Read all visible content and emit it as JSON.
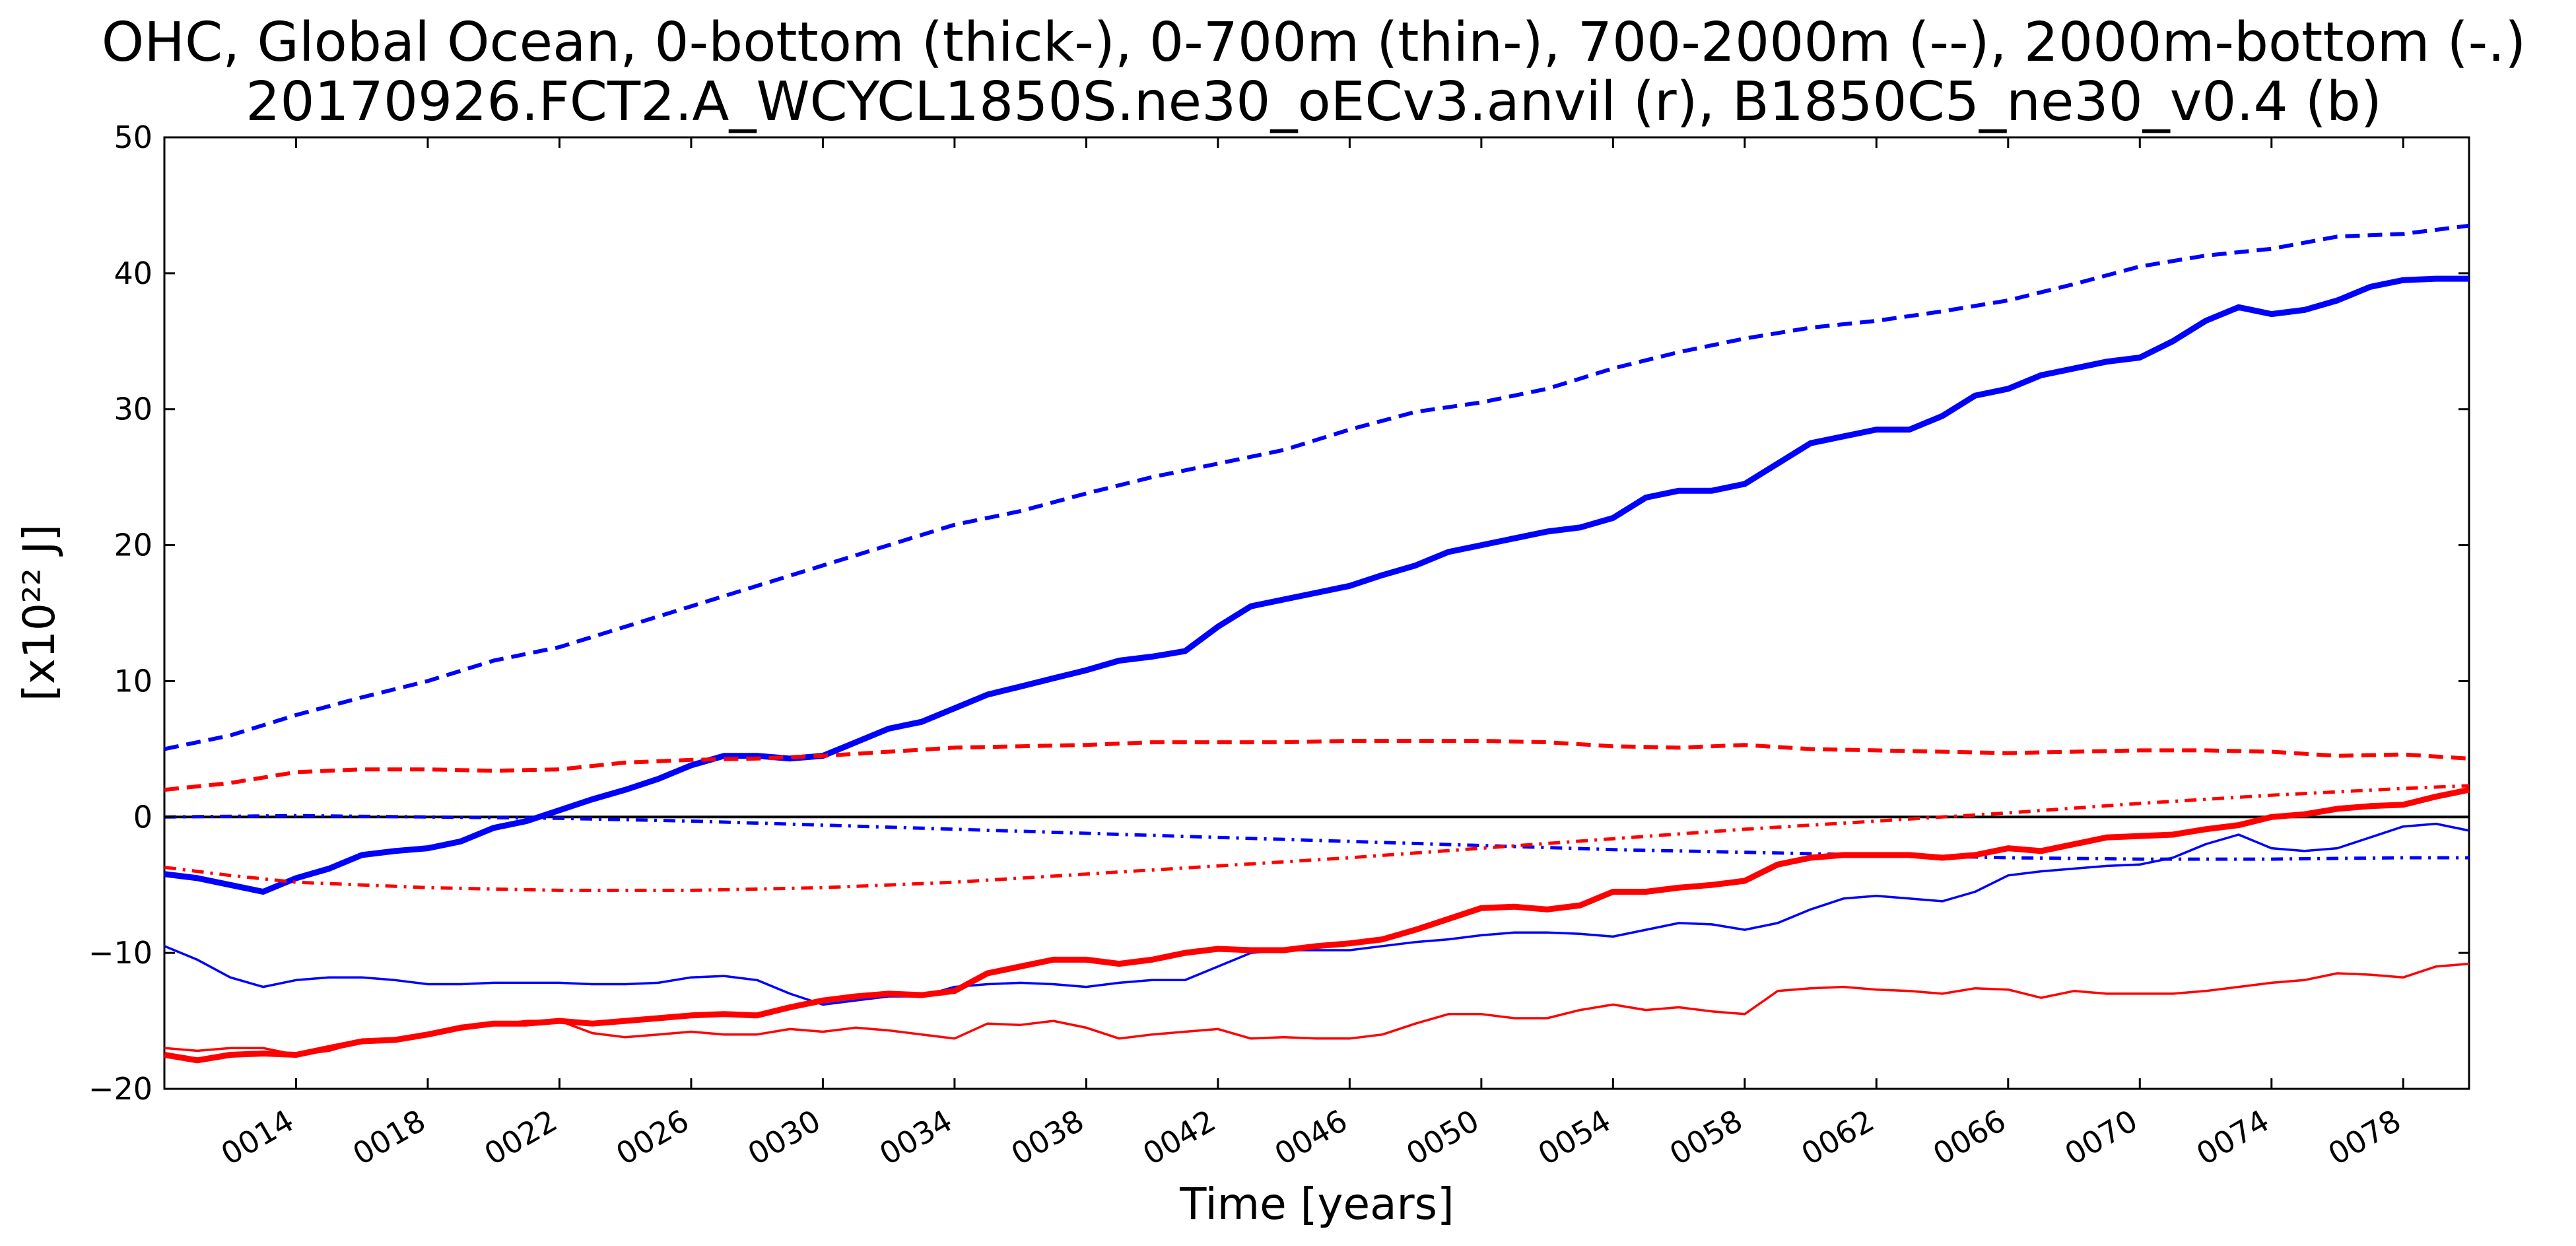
{
  "title_line1": "OHC, Global Ocean, 0-bottom (thick-), 0-700m (thin-), 700-2000m (--), 2000m-bottom (-.)",
  "title_line2": "20170926.FCT2.A_WCYCL1850S.ne30_oECv3.anvil (r), B1850C5_ne30_v0.4 (b)",
  "xlabel": "Time [years]",
  "ylabel": "[x10²² J]",
  "chart_data": {
    "type": "line",
    "title": "OHC, Global Ocean, 0-bottom (thick-), 0-700m (thin-), 700-2000m (--), 2000m-bottom (-.)",
    "subtitle": "20170926.FCT2.A_WCYCL1850S.ne30_oECv3.anvil (r), B1850C5_ne30_v0.4 (b)",
    "xlabel": "Time [years]",
    "ylabel": "[x10²² J]",
    "xlim": [
      10,
      80
    ],
    "ylim": [
      -20,
      50
    ],
    "xticks": [
      14,
      18,
      22,
      26,
      30,
      34,
      38,
      42,
      46,
      50,
      54,
      58,
      62,
      66,
      70,
      74,
      78
    ],
    "xtick_labels": [
      "0014",
      "0018",
      "0022",
      "0026",
      "0030",
      "0034",
      "0038",
      "0042",
      "0046",
      "0050",
      "0054",
      "0058",
      "0062",
      "0066",
      "0070",
      "0074",
      "0078"
    ],
    "yticks": [
      -20,
      -10,
      0,
      10,
      20,
      30,
      40,
      50
    ],
    "ytick_labels": [
      "−20",
      "−10",
      "0",
      "10",
      "20",
      "30",
      "40",
      "50"
    ],
    "zero_line": true,
    "grid": false,
    "colors": {
      "red": "#ff0000",
      "blue": "#0000ff",
      "axis": "#000000"
    },
    "series": [
      {
        "color": "#0000ff",
        "style": "thick",
        "x": [
          10,
          11,
          12,
          13,
          14,
          15,
          16,
          17,
          18,
          19,
          20,
          21,
          22,
          23,
          24,
          25,
          26,
          27,
          28,
          29,
          30,
          31,
          32,
          33,
          34,
          35,
          36,
          37,
          38,
          39,
          40,
          41,
          42,
          43,
          44,
          45,
          46,
          47,
          48,
          49,
          50,
          51,
          52,
          53,
          54,
          55,
          56,
          57,
          58,
          59,
          60,
          61,
          62,
          63,
          64,
          65,
          66,
          67,
          68,
          69,
          70,
          71,
          72,
          73,
          74,
          75,
          76,
          77,
          78,
          79,
          80
        ],
        "y": [
          -4.2,
          -4.5,
          -5.0,
          -5.5,
          -4.5,
          -3.8,
          -2.8,
          -2.5,
          -2.3,
          -1.8,
          -0.8,
          -0.3,
          0.5,
          1.3,
          2.0,
          2.8,
          3.8,
          4.5,
          4.5,
          4.3,
          4.5,
          5.5,
          6.5,
          7.0,
          8.0,
          9.0,
          9.6,
          10.2,
          10.8,
          11.5,
          11.8,
          12.2,
          14.0,
          15.5,
          16.0,
          16.5,
          17.0,
          17.8,
          18.5,
          19.5,
          20.0,
          20.5,
          21.0,
          21.3,
          22.0,
          23.5,
          24.0,
          24.0,
          24.5,
          26.0,
          27.5,
          28.0,
          28.5,
          28.5,
          29.5,
          31.0,
          31.5,
          32.5,
          33.0,
          33.5,
          33.8,
          35.0,
          36.5,
          37.5,
          37.0,
          37.3,
          38.0,
          39.0,
          39.5,
          39.6,
          39.6
        ]
      },
      {
        "color": "#0000ff",
        "style": "thin",
        "x": [
          10,
          11,
          12,
          13,
          14,
          15,
          16,
          17,
          18,
          19,
          20,
          21,
          22,
          23,
          24,
          25,
          26,
          27,
          28,
          29,
          30,
          31,
          32,
          33,
          34,
          35,
          36,
          37,
          38,
          39,
          40,
          41,
          42,
          43,
          44,
          45,
          46,
          47,
          48,
          49,
          50,
          51,
          52,
          53,
          54,
          55,
          56,
          57,
          58,
          59,
          60,
          61,
          62,
          63,
          64,
          65,
          66,
          67,
          68,
          69,
          70,
          71,
          72,
          73,
          74,
          75,
          76,
          77,
          78,
          79,
          80
        ],
        "y": [
          -9.5,
          -10.5,
          -11.8,
          -12.5,
          -12.0,
          -11.8,
          -11.8,
          -12.0,
          -12.3,
          -12.3,
          -12.2,
          -12.2,
          -12.2,
          -12.3,
          -12.3,
          -12.2,
          -11.8,
          -11.7,
          -12.0,
          -13.0,
          -13.8,
          -13.5,
          -13.2,
          -13.2,
          -12.5,
          -12.3,
          -12.2,
          -12.3,
          -12.5,
          -12.2,
          -12.0,
          -12.0,
          -11.0,
          -10.0,
          -9.8,
          -9.8,
          -9.8,
          -9.5,
          -9.2,
          -9.0,
          -8.7,
          -8.5,
          -8.5,
          -8.6,
          -8.8,
          -8.3,
          -7.8,
          -7.9,
          -8.3,
          -7.8,
          -6.8,
          -6.0,
          -5.8,
          -6.0,
          -6.2,
          -5.5,
          -4.3,
          -4.0,
          -3.8,
          -3.6,
          -3.5,
          -3.0,
          -2.0,
          -1.3,
          -2.3,
          -2.5,
          -2.3,
          -1.5,
          -0.7,
          -0.5,
          -1.0
        ]
      },
      {
        "color": "#0000ff",
        "style": "dashed",
        "x": [
          10,
          12,
          14,
          16,
          18,
          20,
          22,
          24,
          26,
          28,
          30,
          32,
          34,
          36,
          38,
          40,
          42,
          44,
          46,
          48,
          50,
          52,
          54,
          56,
          58,
          60,
          62,
          64,
          66,
          68,
          70,
          72,
          74,
          76,
          78,
          80
        ],
        "y": [
          5.0,
          6.0,
          7.5,
          8.8,
          10.0,
          11.5,
          12.5,
          14.0,
          15.5,
          17.0,
          18.5,
          20.0,
          21.5,
          22.5,
          23.8,
          25.0,
          26.0,
          27.0,
          28.5,
          29.8,
          30.5,
          31.5,
          33.0,
          34.2,
          35.2,
          36.0,
          36.5,
          37.2,
          38.0,
          39.2,
          40.5,
          41.3,
          41.8,
          42.7,
          42.9,
          43.5
        ]
      },
      {
        "color": "#0000ff",
        "style": "dashdot",
        "x": [
          10,
          14,
          18,
          22,
          26,
          30,
          34,
          38,
          42,
          46,
          50,
          54,
          58,
          62,
          66,
          70,
          74,
          78,
          80
        ],
        "y": [
          0.0,
          0.1,
          0.0,
          -0.1,
          -0.3,
          -0.6,
          -0.9,
          -1.2,
          -1.5,
          -1.8,
          -2.1,
          -2.4,
          -2.6,
          -2.8,
          -3.0,
          -3.1,
          -3.1,
          -3.0,
          -3.0
        ]
      },
      {
        "color": "#ff0000",
        "style": "thick",
        "x": [
          10,
          11,
          12,
          13,
          14,
          15,
          16,
          17,
          18,
          19,
          20,
          21,
          22,
          23,
          24,
          25,
          26,
          27,
          28,
          29,
          30,
          31,
          32,
          33,
          34,
          35,
          36,
          37,
          38,
          39,
          40,
          41,
          42,
          43,
          44,
          45,
          46,
          47,
          48,
          49,
          50,
          51,
          52,
          53,
          54,
          55,
          56,
          57,
          58,
          59,
          60,
          61,
          62,
          63,
          64,
          65,
          66,
          67,
          68,
          69,
          70,
          71,
          72,
          73,
          74,
          75,
          76,
          77,
          78,
          79,
          80
        ],
        "y": [
          -17.5,
          -17.9,
          -17.5,
          -17.4,
          -17.5,
          -17.0,
          -16.5,
          -16.4,
          -16.0,
          -15.5,
          -15.2,
          -15.2,
          -15.0,
          -15.2,
          -15.0,
          -14.8,
          -14.6,
          -14.5,
          -14.6,
          -14.0,
          -13.5,
          -13.2,
          -13.0,
          -13.1,
          -12.8,
          -11.5,
          -11.0,
          -10.5,
          -10.5,
          -10.8,
          -10.5,
          -10.0,
          -9.7,
          -9.8,
          -9.8,
          -9.5,
          -9.3,
          -9.0,
          -8.3,
          -7.5,
          -6.7,
          -6.6,
          -6.8,
          -6.5,
          -5.5,
          -5.5,
          -5.2,
          -5.0,
          -4.7,
          -3.5,
          -3.0,
          -2.8,
          -2.8,
          -2.8,
          -3.0,
          -2.8,
          -2.3,
          -2.5,
          -2.0,
          -1.5,
          -1.4,
          -1.3,
          -0.9,
          -0.6,
          0.0,
          0.2,
          0.6,
          0.8,
          0.9,
          1.5,
          2.0
        ]
      },
      {
        "color": "#ff0000",
        "style": "thin",
        "x": [
          10,
          11,
          12,
          13,
          14,
          15,
          16,
          17,
          18,
          19,
          20,
          21,
          22,
          23,
          24,
          25,
          26,
          27,
          28,
          29,
          30,
          31,
          32,
          33,
          34,
          35,
          36,
          37,
          38,
          39,
          40,
          41,
          42,
          43,
          44,
          45,
          46,
          47,
          48,
          49,
          50,
          51,
          52,
          53,
          54,
          55,
          56,
          57,
          58,
          59,
          60,
          61,
          62,
          63,
          64,
          65,
          66,
          67,
          68,
          69,
          70,
          71,
          72,
          73,
          74,
          75,
          76,
          77,
          78,
          79,
          80
        ],
        "y": [
          -17.0,
          -17.2,
          -17.0,
          -17.0,
          -17.5,
          -17.2,
          -16.5,
          -16.3,
          -16.0,
          -15.5,
          -15.3,
          -15.0,
          -15.0,
          -15.9,
          -16.2,
          -16.0,
          -15.8,
          -16.0,
          -16.0,
          -15.6,
          -15.8,
          -15.5,
          -15.7,
          -16.0,
          -16.3,
          -15.2,
          -15.3,
          -15.0,
          -15.5,
          -16.3,
          -16.0,
          -15.8,
          -15.6,
          -16.3,
          -16.2,
          -16.3,
          -16.3,
          -16.0,
          -15.2,
          -14.5,
          -14.5,
          -14.8,
          -14.8,
          -14.2,
          -13.8,
          -14.2,
          -14.0,
          -14.3,
          -14.5,
          -12.8,
          -12.6,
          -12.5,
          -12.7,
          -12.8,
          -13.0,
          -12.6,
          -12.7,
          -13.3,
          -12.8,
          -13.0,
          -13.0,
          -13.0,
          -12.8,
          -12.5,
          -12.2,
          -12.0,
          -11.5,
          -11.6,
          -11.8,
          -11.0,
          -10.8
        ]
      },
      {
        "color": "#ff0000",
        "style": "dashed",
        "x": [
          10,
          12,
          14,
          16,
          18,
          20,
          22,
          24,
          26,
          28,
          30,
          32,
          34,
          36,
          38,
          40,
          42,
          44,
          46,
          48,
          50,
          52,
          54,
          56,
          58,
          60,
          62,
          64,
          66,
          68,
          70,
          72,
          74,
          76,
          78,
          80
        ],
        "y": [
          2.0,
          2.5,
          3.3,
          3.5,
          3.5,
          3.4,
          3.5,
          4.0,
          4.2,
          4.3,
          4.5,
          4.8,
          5.1,
          5.2,
          5.3,
          5.5,
          5.5,
          5.5,
          5.6,
          5.6,
          5.6,
          5.5,
          5.2,
          5.1,
          5.3,
          5.0,
          4.9,
          4.8,
          4.7,
          4.8,
          4.9,
          4.9,
          4.8,
          4.5,
          4.6,
          4.3
        ]
      },
      {
        "color": "#ff0000",
        "style": "dashdot",
        "x": [
          10,
          12,
          14,
          16,
          18,
          20,
          22,
          24,
          26,
          28,
          30,
          34,
          38,
          42,
          46,
          50,
          54,
          58,
          62,
          66,
          70,
          74,
          78,
          80
        ],
        "y": [
          -3.7,
          -4.3,
          -4.8,
          -5.0,
          -5.2,
          -5.3,
          -5.4,
          -5.4,
          -5.4,
          -5.3,
          -5.2,
          -4.8,
          -4.2,
          -3.6,
          -3.0,
          -2.3,
          -1.6,
          -0.9,
          -0.3,
          0.3,
          1.0,
          1.6,
          2.1,
          2.3
        ]
      }
    ]
  }
}
